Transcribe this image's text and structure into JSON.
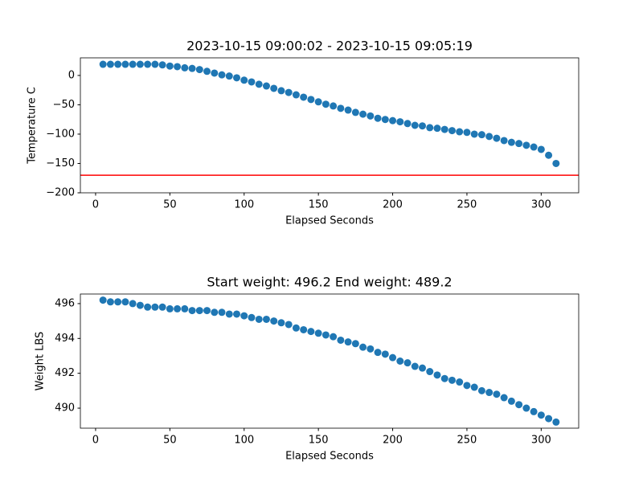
{
  "chart_data": [
    {
      "type": "scatter",
      "title": "2023-10-15 09:00:02 - 2023-10-15 09:05:19",
      "xlabel": "Elapsed Seconds",
      "ylabel": "Temperature C",
      "color": "#1f77b4",
      "x": [
        5,
        10,
        15,
        20,
        25,
        30,
        35,
        40,
        45,
        50,
        55,
        60,
        65,
        70,
        75,
        80,
        85,
        90,
        95,
        100,
        105,
        110,
        115,
        120,
        125,
        130,
        135,
        140,
        145,
        150,
        155,
        160,
        165,
        170,
        175,
        180,
        185,
        190,
        195,
        200,
        205,
        210,
        215,
        220,
        225,
        230,
        235,
        240,
        245,
        250,
        255,
        260,
        265,
        270,
        275,
        280,
        285,
        290,
        295,
        300,
        305,
        310
      ],
      "values": [
        19,
        19,
        19,
        19,
        19,
        19,
        19,
        19,
        18,
        16,
        15,
        13,
        12,
        10,
        7,
        4,
        1,
        -1,
        -4,
        -8,
        -11,
        -15,
        -18,
        -22,
        -26,
        -29,
        -33,
        -37,
        -41,
        -45,
        -49,
        -52,
        -56,
        -59,
        -63,
        -66,
        -69,
        -73,
        -75,
        -77,
        -79,
        -82,
        -85,
        -86,
        -89,
        -90,
        -92,
        -94,
        -96,
        -97,
        -100,
        -101,
        -104,
        -107,
        -111,
        -114,
        -116,
        -119,
        -122,
        -126,
        -136,
        -150
      ],
      "hline": {
        "value": -170,
        "color": "#ff0000"
      },
      "xlim": [
        -10.25,
        325.25
      ],
      "ylim": [
        -200,
        30
      ],
      "xticks": [
        0,
        50,
        100,
        150,
        200,
        250,
        300
      ],
      "yticks": [
        {
          "value": -200,
          "label": "−200"
        },
        {
          "value": -150,
          "label": "−150"
        },
        {
          "value": -100,
          "label": "−100"
        },
        {
          "value": -50,
          "label": "−50"
        },
        0
      ]
    },
    {
      "type": "scatter",
      "title": "Start weight: 496.2 End weight: 489.2",
      "xlabel": "Elapsed Seconds",
      "ylabel": "Weight LBS",
      "color": "#1f77b4",
      "x": [
        5,
        10,
        15,
        20,
        25,
        30,
        35,
        40,
        45,
        50,
        55,
        60,
        65,
        70,
        75,
        80,
        85,
        90,
        95,
        100,
        105,
        110,
        115,
        120,
        125,
        130,
        135,
        140,
        145,
        150,
        155,
        160,
        165,
        170,
        175,
        180,
        185,
        190,
        195,
        200,
        205,
        210,
        215,
        220,
        225,
        230,
        235,
        240,
        245,
        250,
        255,
        260,
        265,
        270,
        275,
        280,
        285,
        290,
        295,
        300,
        305,
        310
      ],
      "values": [
        496.2,
        496.1,
        496.1,
        496.1,
        496.0,
        495.9,
        495.8,
        495.8,
        495.8,
        495.7,
        495.7,
        495.7,
        495.6,
        495.6,
        495.6,
        495.5,
        495.5,
        495.4,
        495.4,
        495.3,
        495.2,
        495.1,
        495.1,
        495.0,
        494.9,
        494.8,
        494.6,
        494.5,
        494.4,
        494.3,
        494.2,
        494.1,
        493.9,
        493.8,
        493.7,
        493.5,
        493.4,
        493.2,
        493.1,
        492.9,
        492.7,
        492.6,
        492.4,
        492.3,
        492.1,
        491.9,
        491.7,
        491.6,
        491.5,
        491.3,
        491.2,
        491.0,
        490.9,
        490.8,
        490.6,
        490.4,
        490.2,
        490.0,
        489.8,
        489.6,
        489.4,
        489.2
      ],
      "xlim": [
        -10.25,
        325.25
      ],
      "ylim": [
        488.85,
        496.55
      ],
      "xticks": [
        0,
        50,
        100,
        150,
        200,
        250,
        300
      ],
      "yticks": [
        490,
        492,
        494,
        496
      ]
    }
  ]
}
